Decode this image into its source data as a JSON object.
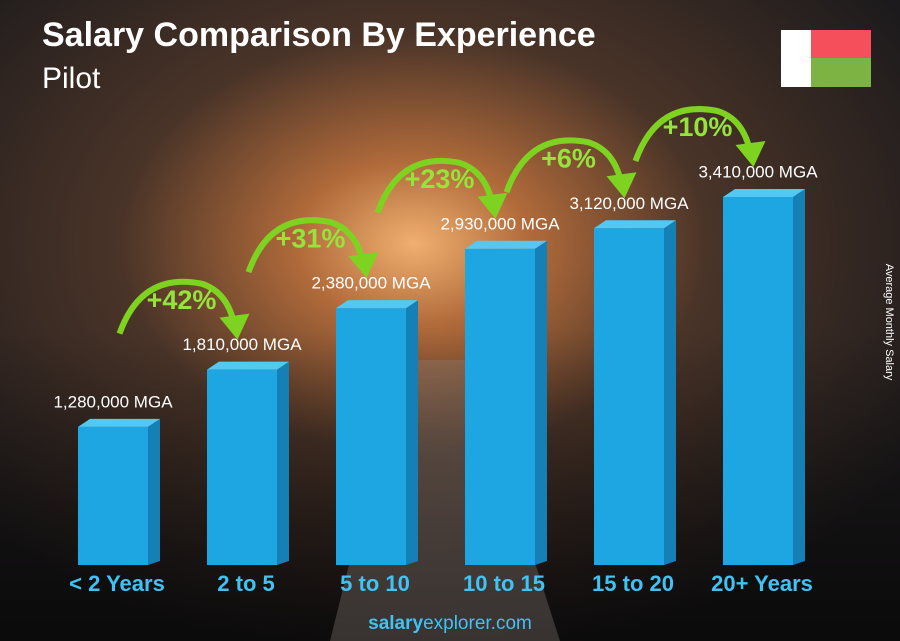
{
  "chart_data": {
    "type": "bar3d",
    "title": "Salary Comparison By Experience",
    "subtitle": "Pilot",
    "y_label": "Average Monthly Salary",
    "categories": [
      "< 2 Years",
      "2 to 5",
      "5 to 10",
      "10 to 15",
      "15 to 20",
      "20+ Years"
    ],
    "values": [
      1280000,
      1810000,
      2380000,
      2930000,
      3120000,
      3410000
    ],
    "value_labels": [
      "1,280,000 MGA",
      "1,810,000 MGA",
      "2,380,000 MGA",
      "2,930,000 MGA",
      "3,120,000 MGA",
      "3,410,000 MGA"
    ],
    "growth_labels": [
      "+42%",
      "+31%",
      "+23%",
      "+6%",
      "+10%"
    ],
    "color": "#1da6e2",
    "footer": {
      "bold": "salary",
      "rest": "explorer.com"
    }
  }
}
